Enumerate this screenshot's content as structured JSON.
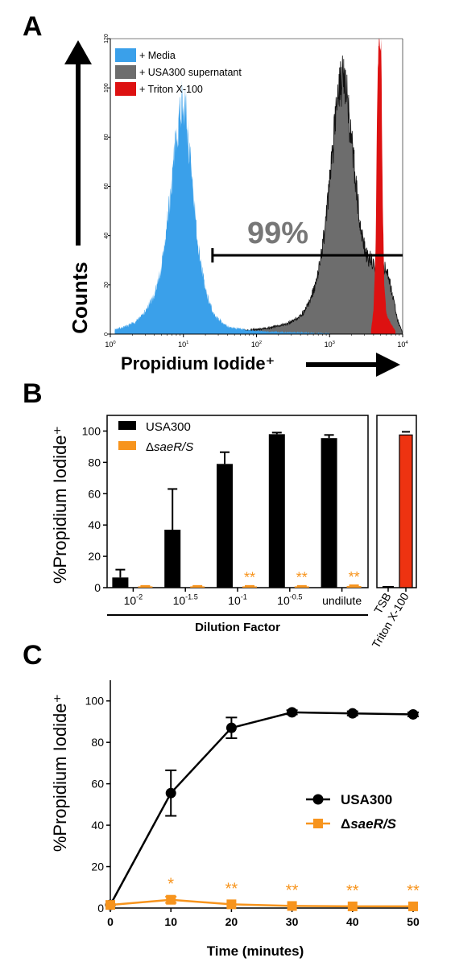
{
  "panels": {
    "a": "A",
    "b": "B",
    "c": "C"
  },
  "colors": {
    "media": "#3aa0ea",
    "usa300_sup": "#6d6d6d",
    "triton": "#dd1111",
    "usa300": "#000000",
    "sae": "#f7941d",
    "triton_bar": "#ee3311"
  },
  "chart_data": [
    {
      "panel": "A",
      "type": "area",
      "xlabel": "Propidium Iodide⁺",
      "ylabel": "Counts",
      "xscale": "log",
      "xlim": [
        1,
        10000
      ],
      "ylim": [
        0,
        120
      ],
      "x_ticks": [
        {
          "base": "10",
          "exp": "0"
        },
        {
          "base": "10",
          "exp": "1"
        },
        {
          "base": "10",
          "exp": "2"
        },
        {
          "base": "10",
          "exp": "3"
        },
        {
          "base": "10",
          "exp": "4"
        }
      ],
      "y_ticks": [
        0,
        20,
        40,
        60,
        80,
        100,
        120
      ],
      "legend": {
        "position": "top-left"
      },
      "gate_label": "99%",
      "gate_range": [
        25,
        10000
      ],
      "gate_level": 32,
      "series": [
        {
          "name": "+ Media",
          "key": "media",
          "x": [
            1.15,
            1.6,
            2.2,
            3,
            4,
            5,
            6,
            7,
            8,
            9,
            10,
            11,
            12.5,
            14,
            16,
            20,
            26,
            40,
            80,
            150,
            300,
            600,
            1000
          ],
          "y": [
            2,
            3,
            5,
            9,
            16,
            27,
            45,
            64,
            80,
            92,
            96,
            88,
            70,
            52,
            36,
            18,
            8,
            3,
            1.5,
            1,
            0.8,
            0.5,
            0.3
          ]
        },
        {
          "name": "+ USA300 supernatant",
          "key": "usa300_sup",
          "x": [
            30,
            80,
            150,
            250,
            350,
            450,
            550,
            650,
            750,
            850,
            950,
            1050,
            1150,
            1250,
            1350,
            1450,
            1550,
            1650,
            1800,
            2000,
            2300,
            2700,
            3200,
            3700,
            4300,
            5000,
            5800,
            6600,
            7500,
            8500,
            9500,
            10000
          ],
          "y": [
            0.5,
            1.5,
            2.5,
            4,
            6,
            9,
            14,
            20,
            30,
            42,
            55,
            68,
            80,
            90,
            98,
            104,
            106,
            102,
            92,
            78,
            60,
            42,
            32,
            30,
            26,
            24,
            28,
            22,
            14,
            6,
            2,
            0
          ]
        },
        {
          "name": "+ Triton X-100",
          "key": "triton",
          "x": [
            3700,
            4000,
            4300,
            4500,
            4700,
            4900,
            5100,
            5300,
            5600,
            6000,
            7000,
            8000
          ],
          "y": [
            2,
            10,
            40,
            100,
            120,
            120,
            115,
            60,
            20,
            8,
            4,
            1
          ]
        }
      ]
    },
    {
      "panel": "B",
      "type": "bar",
      "ylabel": "%Propidium Iodide⁺",
      "xlabel": "Dilution Factor",
      "ylim": [
        0,
        110
      ],
      "y_ticks": [
        0,
        20,
        40,
        60,
        80,
        100
      ],
      "categories": [
        {
          "base": "10",
          "exp": "-2"
        },
        {
          "base": "10",
          "exp": "-1.5"
        },
        {
          "base": "10",
          "exp": "-1"
        },
        {
          "base": "10",
          "exp": "-0.5"
        },
        {
          "base": "undilute",
          "exp": ""
        }
      ],
      "legend": {
        "position": "top-left"
      },
      "series": [
        {
          "name": "USA300",
          "key": "usa300",
          "values": [
            6.5,
            37,
            79,
            98,
            95.5
          ],
          "errors": [
            5,
            26,
            7.5,
            1,
            2
          ]
        },
        {
          "name": "ΔsaeR/S",
          "key": "sae",
          "values": [
            0.8,
            0.8,
            0.8,
            0.8,
            1
          ],
          "errors": [
            0.3,
            0.3,
            0.3,
            0.3,
            0.5
          ],
          "annotations": [
            "",
            "",
            "**",
            "**",
            "**"
          ]
        }
      ],
      "controls": {
        "categories": [
          "TSB",
          "Triton X-100"
        ],
        "values": [
          0.5,
          97.5
        ],
        "errors": [
          0.3,
          2
        ]
      }
    },
    {
      "panel": "C",
      "type": "line",
      "ylabel": "%Propidium Iodide⁺",
      "xlabel": "Time (minutes)",
      "xlim": [
        0,
        50
      ],
      "ylim": [
        0,
        110
      ],
      "x_ticks": [
        0,
        10,
        20,
        30,
        40,
        50
      ],
      "y_ticks": [
        0,
        20,
        40,
        60,
        80,
        100
      ],
      "legend": {
        "position": "middle-right"
      },
      "series": [
        {
          "name": "USA300",
          "key": "usa300",
          "marker": "circle",
          "x": [
            0,
            10,
            20,
            30,
            40,
            50
          ],
          "y": [
            1.5,
            55.5,
            87,
            94.5,
            94,
            93.5
          ],
          "errors": [
            0.5,
            11,
            5,
            1,
            1,
            1
          ]
        },
        {
          "name": "ΔsaeR/S",
          "key": "sae",
          "marker": "square",
          "x": [
            0,
            10,
            20,
            30,
            40,
            50
          ],
          "y": [
            1.5,
            4,
            1.8,
            1,
            0.8,
            0.8
          ],
          "errors": [
            0.5,
            1.5,
            0.5,
            0.3,
            0.3,
            0.3
          ],
          "annotations": [
            "",
            "*",
            "**",
            "**",
            "**",
            "**"
          ]
        }
      ]
    }
  ]
}
